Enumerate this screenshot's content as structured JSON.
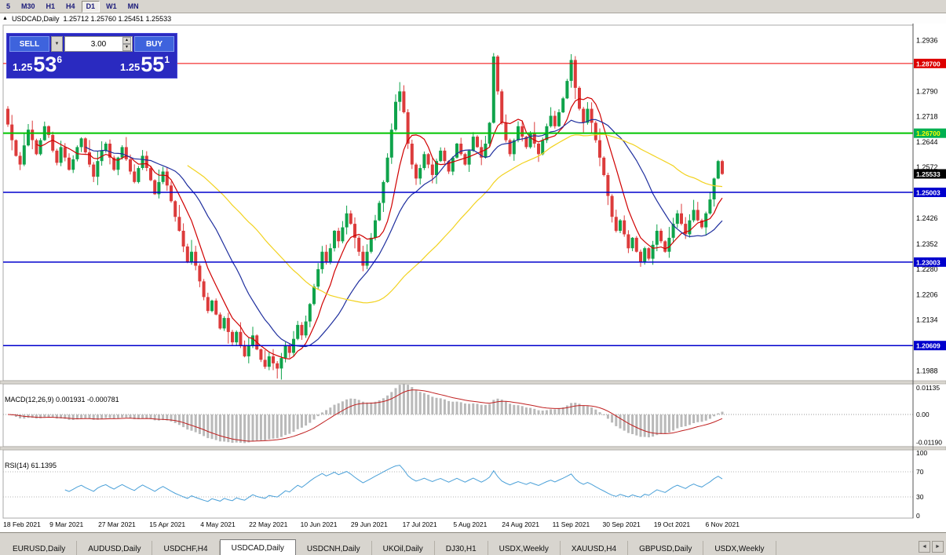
{
  "toolbar": {
    "timeframes": [
      "5",
      "M30",
      "H1",
      "H4",
      "D1",
      "W1",
      "MN"
    ],
    "active": "D1"
  },
  "chart_title": {
    "marker": "▲",
    "symbol": "USDCAD,Daily",
    "ohlc": "1.25712 1.25760 1.25451 1.25533"
  },
  "trade_panel": {
    "sell_label": "SELL",
    "buy_label": "BUY",
    "lot_value": "3.00",
    "sell_price_prefix": "1.25",
    "sell_price_main": "53",
    "sell_price_pip": "6",
    "buy_price_prefix": "1.25",
    "buy_price_main": "55",
    "buy_price_pip": "1"
  },
  "icons": {
    "dropdown": "▼",
    "spin_up": "▲",
    "spin_down": "▼",
    "tab_scroll_left": "◄",
    "tab_scroll_right": "►"
  },
  "levels": [
    {
      "price": 1.287,
      "label": "1.28700",
      "line_color": "#f00000",
      "line_width": 1,
      "badge_bg": "#dd0000",
      "badge_fg": "#ffffff"
    },
    {
      "price": 1.267,
      "label": "1.26700",
      "line_color": "#00c400",
      "line_width": 2,
      "badge_bg": "#00b050",
      "badge_fg": "#ffff00"
    },
    {
      "price": 1.25003,
      "label": "1.25003",
      "line_color": "#0000cd",
      "line_width": 1.5,
      "badge_bg": "#0000cd",
      "badge_fg": "#ffffff"
    },
    {
      "price": 1.23003,
      "label": "1.23003",
      "line_color": "#0000cd",
      "line_width": 1.5,
      "badge_bg": "#0000cd",
      "badge_fg": "#ffffff"
    },
    {
      "price": 1.20609,
      "label": "1.20609",
      "line_color": "#0000cd",
      "line_width": 1.5,
      "badge_bg": "#0000cd",
      "badge_fg": "#ffffff"
    }
  ],
  "current_price": {
    "value": 1.25533,
    "label": "1.25533",
    "bg": "#000000",
    "fg": "#ffffff"
  },
  "macd": {
    "label": "MACD(12,26,9) 0.001931 -0.000781",
    "axis": [
      {
        "t": "0.01135",
        "v": 0.01135
      },
      {
        "t": "0.00",
        "v": 0
      },
      {
        "t": "-0.01190",
        "v": -0.0119
      }
    ]
  },
  "rsi": {
    "label": "RSI(14) 61.1395",
    "axis": [
      {
        "t": "100",
        "v": 100
      },
      {
        "t": "70",
        "v": 70
      },
      {
        "t": "30",
        "v": 30
      },
      {
        "t": "0",
        "v": 0
      }
    ],
    "levels": [
      70,
      30
    ]
  },
  "tabs": {
    "items": [
      "EURUSD,Daily",
      "AUDUSD,Daily",
      "USDCHF,H4",
      "USDCAD,Daily",
      "USDCNH,Daily",
      "UKOil,Daily",
      "DJ30,H1",
      "USDX,Weekly",
      "XAUUSD,H4",
      "GBPUSD,Daily",
      "USDX,Weekly"
    ],
    "active_index": 3
  },
  "chart_data": {
    "type": "candlestick",
    "symbol": "USDCAD",
    "timeframe": "Daily",
    "open_first": 1.274,
    "price_min": 1.196,
    "price_max": 1.298,
    "closes": [
      1.2695,
      1.265,
      1.2605,
      1.258,
      1.2635,
      1.268,
      1.265,
      1.261,
      1.265,
      1.269,
      1.2665,
      1.262,
      1.2585,
      1.263,
      1.26,
      1.2565,
      1.2595,
      1.263,
      1.2655,
      1.2615,
      1.258,
      1.2545,
      1.259,
      1.262,
      1.264,
      1.26,
      1.2565,
      1.26,
      1.263,
      1.2595,
      1.256,
      1.253,
      1.257,
      1.2605,
      1.257,
      1.2535,
      1.2495,
      1.253,
      1.256,
      1.252,
      1.2475,
      1.243,
      1.239,
      1.2345,
      1.23,
      1.233,
      1.229,
      1.2245,
      1.22,
      1.216,
      1.219,
      1.215,
      1.211,
      1.214,
      1.21,
      1.207,
      1.21,
      1.206,
      1.203,
      1.206,
      1.209,
      1.205,
      1.202,
      1.2,
      1.203,
      1.201,
      1.1995,
      1.2025,
      1.206,
      1.204,
      1.208,
      1.212,
      1.209,
      1.213,
      1.218,
      1.223,
      1.228,
      1.233,
      1.23,
      1.234,
      1.239,
      1.236,
      1.24,
      1.244,
      1.241,
      1.237,
      1.233,
      1.229,
      1.233,
      1.237,
      1.242,
      1.247,
      1.253,
      1.26,
      1.268,
      1.276,
      1.279,
      1.273,
      1.264,
      1.258,
      1.254,
      1.257,
      1.261,
      1.258,
      1.255,
      1.259,
      1.262,
      1.259,
      1.256,
      1.26,
      1.264,
      1.261,
      1.258,
      1.262,
      1.266,
      1.263,
      1.26,
      1.264,
      1.27,
      1.289,
      1.279,
      1.27,
      1.265,
      1.261,
      1.265,
      1.269,
      1.266,
      1.263,
      1.267,
      1.264,
      1.261,
      1.265,
      1.269,
      1.272,
      1.269,
      1.273,
      1.277,
      1.282,
      1.288,
      1.28,
      1.274,
      1.27,
      1.274,
      1.27,
      1.265,
      1.26,
      1.255,
      1.249,
      1.243,
      1.239,
      1.242,
      1.238,
      1.234,
      1.237,
      1.233,
      1.23,
      1.234,
      1.231,
      1.235,
      1.239,
      1.236,
      1.233,
      1.237,
      1.241,
      1.244,
      1.241,
      1.238,
      1.242,
      1.245,
      1.242,
      1.24,
      1.244,
      1.248,
      1.254,
      1.259,
      1.2553
    ],
    "y_axis_labels": [
      1.2936,
      1.279,
      1.2718,
      1.2644,
      1.2572,
      1.2426,
      1.2352,
      1.228,
      1.2206,
      1.2134,
      1.1988
    ],
    "x_axis_dates": [
      "18 Feb 2021",
      "9 Mar 2021",
      "27 Mar 2021",
      "15 Apr 2021",
      "4 May 2021",
      "22 May 2021",
      "10 Jun 2021",
      "29 Jun 2021",
      "17 Jul 2021",
      "5 Aug 2021",
      "24 Aug 2021",
      "11 Sep 2021",
      "30 Sep 2021",
      "19 Oct 2021",
      "6 Nov 2021"
    ],
    "moving_averages": [
      {
        "period": 8,
        "color": "#d00000"
      },
      {
        "period": 20,
        "color": "#1f2f9e"
      },
      {
        "period": 45,
        "color": "#f2d21f"
      }
    ],
    "colors": {
      "up": "#0fa34b",
      "down": "#dc3b3b",
      "macd_hist": "#b9b9b9",
      "macd_signal": "#c02020",
      "rsi_line": "#4aa0d8"
    }
  }
}
